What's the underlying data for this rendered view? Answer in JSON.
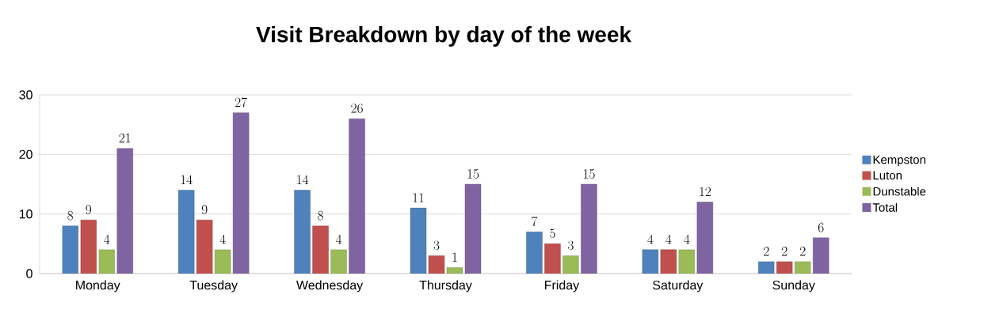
{
  "chart_data": {
    "type": "bar",
    "title": "Visit Breakdown by day of the week",
    "categories": [
      "Monday",
      "Tuesday",
      "Wednesday",
      "Thursday",
      "Friday",
      "Saturday",
      "Sunday"
    ],
    "series": [
      {
        "name": "Kempston",
        "color": "#4f81bd",
        "values": [
          8,
          14,
          14,
          11,
          7,
          4,
          2
        ]
      },
      {
        "name": "Luton",
        "color": "#c0504d",
        "values": [
          9,
          9,
          8,
          3,
          5,
          4,
          2
        ]
      },
      {
        "name": "Dunstable",
        "color": "#9bbb59",
        "values": [
          4,
          4,
          4,
          1,
          3,
          4,
          2
        ]
      },
      {
        "name": "Total",
        "color": "#8064a2",
        "values": [
          21,
          27,
          26,
          15,
          15,
          12,
          6
        ]
      }
    ],
    "ylim": [
      0,
      30
    ],
    "yticks": [
      0,
      10,
      20,
      30
    ],
    "grid": "y",
    "legend": "right",
    "data_labels": true
  }
}
